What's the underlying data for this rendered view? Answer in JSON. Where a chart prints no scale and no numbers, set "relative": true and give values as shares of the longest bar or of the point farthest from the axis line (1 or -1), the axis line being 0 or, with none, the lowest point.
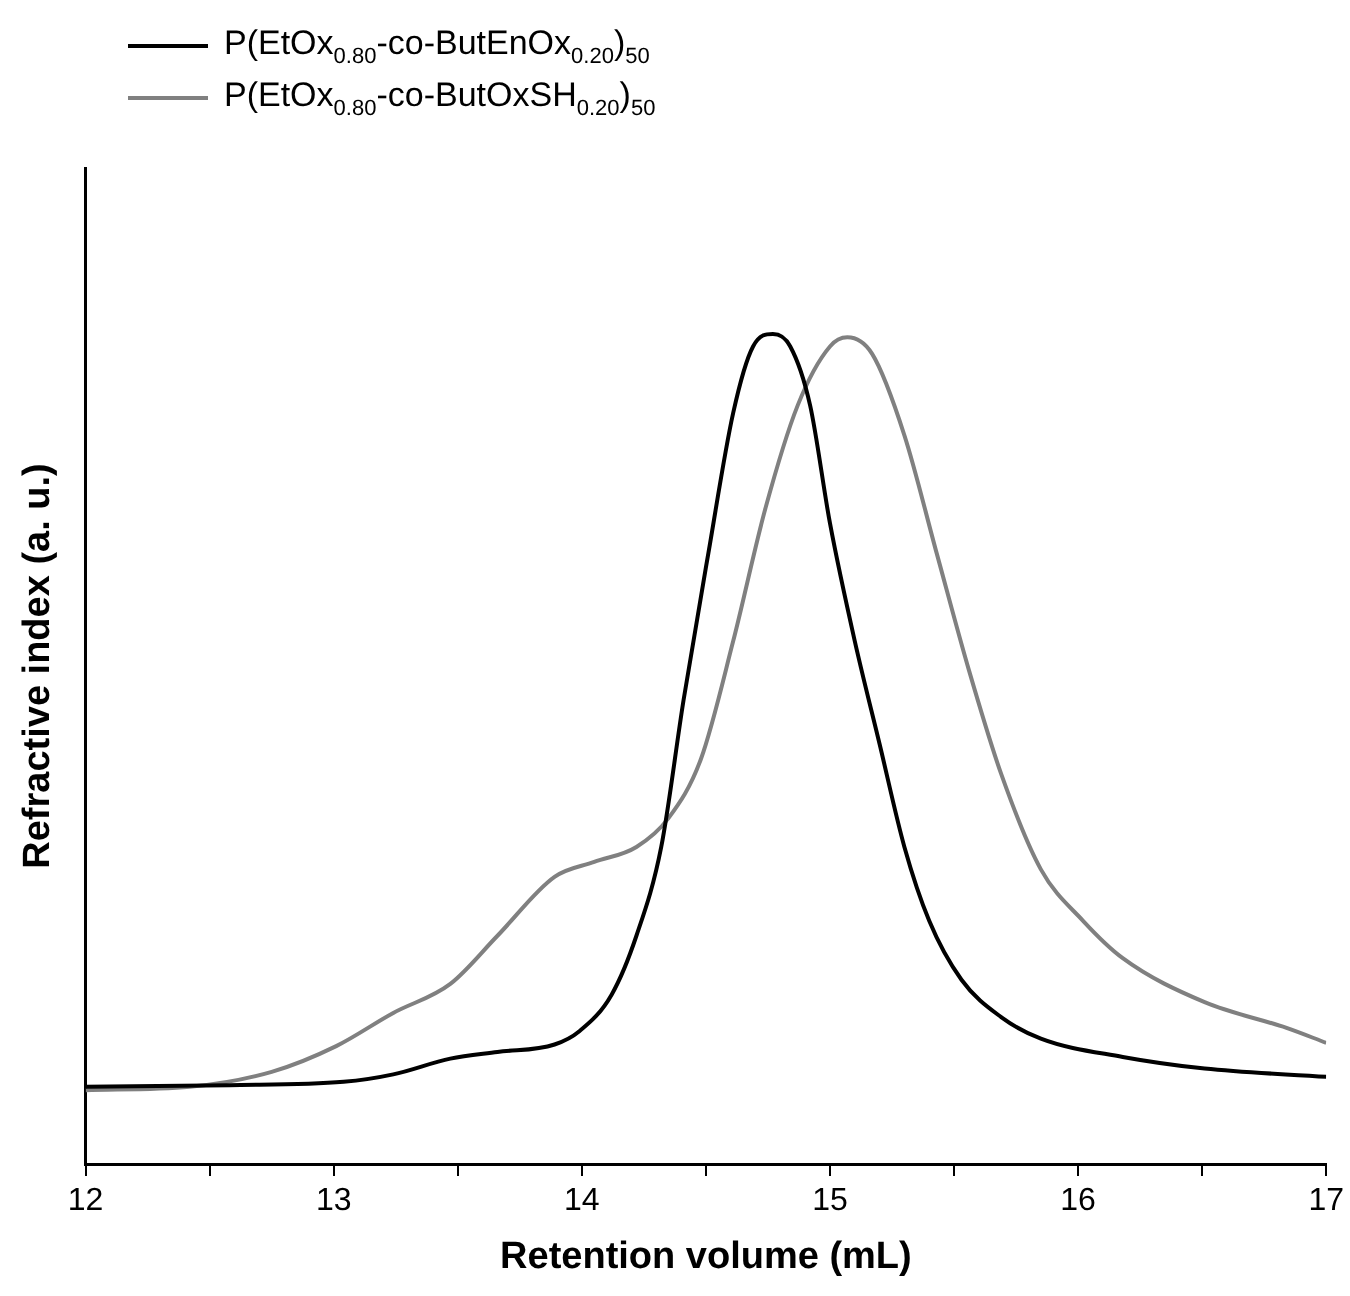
{
  "chart_data": {
    "type": "line",
    "xlabel": "Retention volume (mL)",
    "ylabel": "Refractive index (a. u.)",
    "relative": true,
    "xlim": [
      12,
      17
    ],
    "xticks": [
      12,
      {
        "value": 12.5,
        "label": null
      },
      13,
      {
        "value": 13.5,
        "label": null
      },
      14,
      {
        "value": 14.5,
        "label": null
      },
      15,
      {
        "value": 15.5,
        "label": null
      },
      16,
      {
        "value": 16.5,
        "label": null
      },
      17
    ],
    "legend": "top left",
    "marker": "none",
    "line_style": "solid",
    "tick_labels": "x",
    "series": [
      {
        "name": "P(EtOx$_{0.80}$-co-ButEnOx$_{0.20}$)$_{50}$",
        "color": "#000000",
        "x": [
          12.0,
          12.58,
          13.04,
          13.24,
          13.47,
          13.66,
          13.89,
          13.99,
          14.12,
          14.22,
          14.32,
          14.41,
          14.51,
          14.61,
          14.69,
          14.77,
          14.84,
          14.92,
          15.0,
          15.1,
          15.2,
          15.3,
          15.4,
          15.53,
          15.69,
          15.85,
          16.18,
          16.51,
          17.0
        ],
        "values": [
          0.093,
          0.095,
          0.099,
          0.108,
          0.127,
          0.135,
          0.144,
          0.16,
          0.204,
          0.275,
          0.382,
          0.559,
          0.736,
          0.905,
          0.985,
          1,
          0.985,
          0.914,
          0.772,
          0.63,
          0.506,
          0.382,
          0.293,
          0.222,
          0.177,
          0.151,
          0.129,
          0.115,
          0.105
        ]
      },
      {
        "name": "P(EtOx$_{0.80}$-co-ButOxSH$_{0.20}$)$_{50}$",
        "color": "#808080",
        "x": [
          12.0,
          12.42,
          12.75,
          13.01,
          13.24,
          13.47,
          13.66,
          13.89,
          14.05,
          14.22,
          14.35,
          14.48,
          14.61,
          14.74,
          14.87,
          15.0,
          15.07,
          15.17,
          15.3,
          15.43,
          15.56,
          15.69,
          15.85,
          16.02,
          16.18,
          16.51,
          16.84,
          17.0
        ],
        "values": [
          0.089,
          0.093,
          0.111,
          0.142,
          0.182,
          0.217,
          0.275,
          0.346,
          0.364,
          0.382,
          0.417,
          0.488,
          0.63,
          0.79,
          0.914,
          0.985,
          0.996,
          0.976,
          0.878,
          0.736,
          0.595,
          0.47,
          0.355,
          0.293,
          0.248,
          0.195,
          0.164,
          0.146
        ]
      }
    ]
  }
}
